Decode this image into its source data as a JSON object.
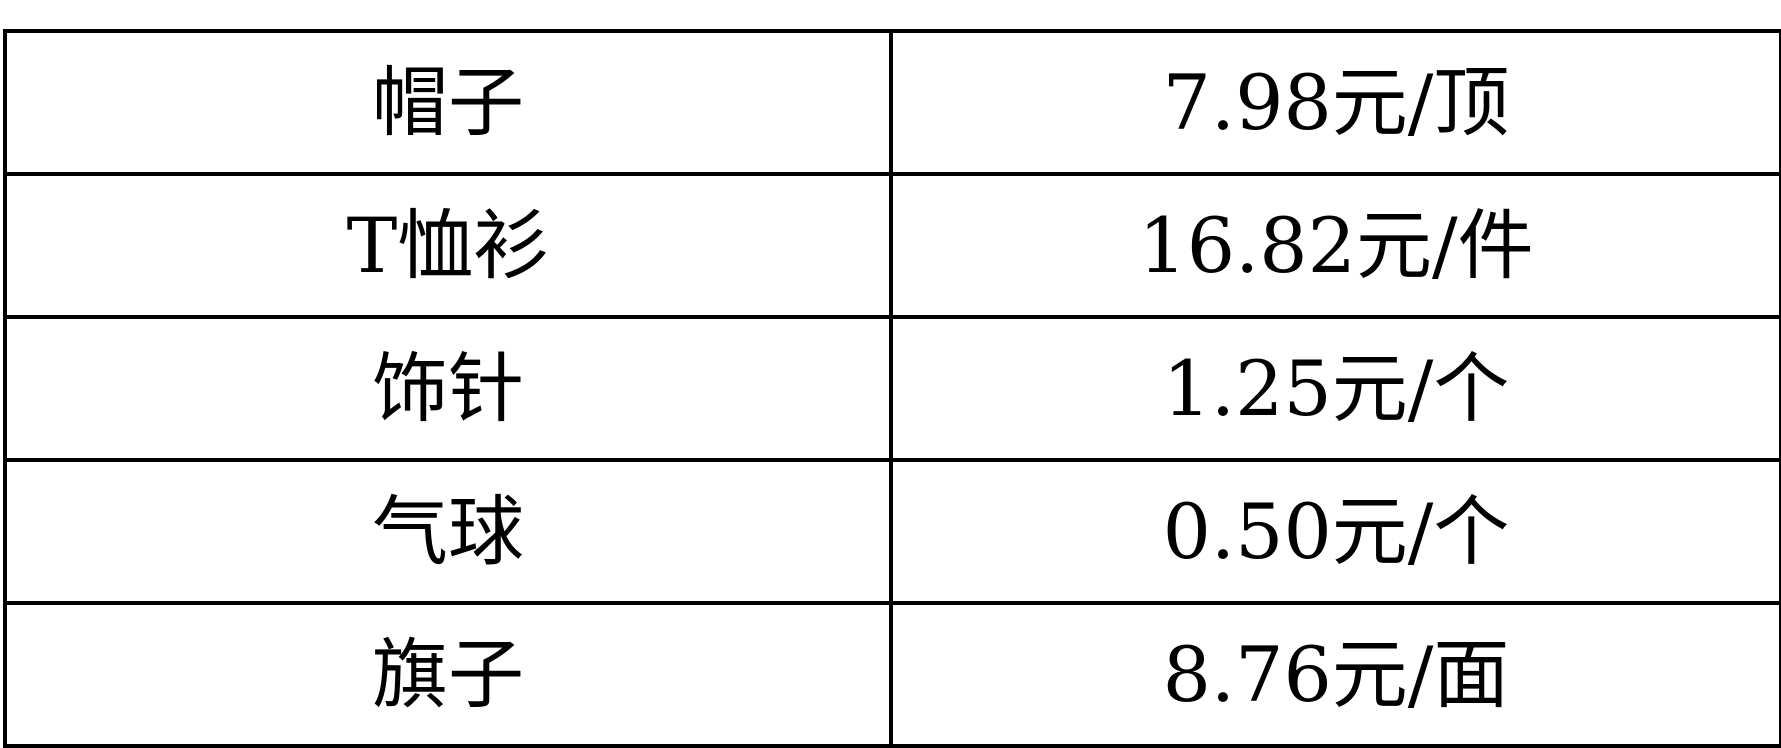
{
  "table": {
    "rows": [
      {
        "item": "帽子",
        "price": "7.98元/顶"
      },
      {
        "item": "T恤衫",
        "price": "16.82元/件"
      },
      {
        "item": "饰针",
        "price": "1.25元/个"
      },
      {
        "item": "气球",
        "price": "0.50元/个"
      },
      {
        "item": "旗子",
        "price": "8.76元/面"
      }
    ]
  }
}
